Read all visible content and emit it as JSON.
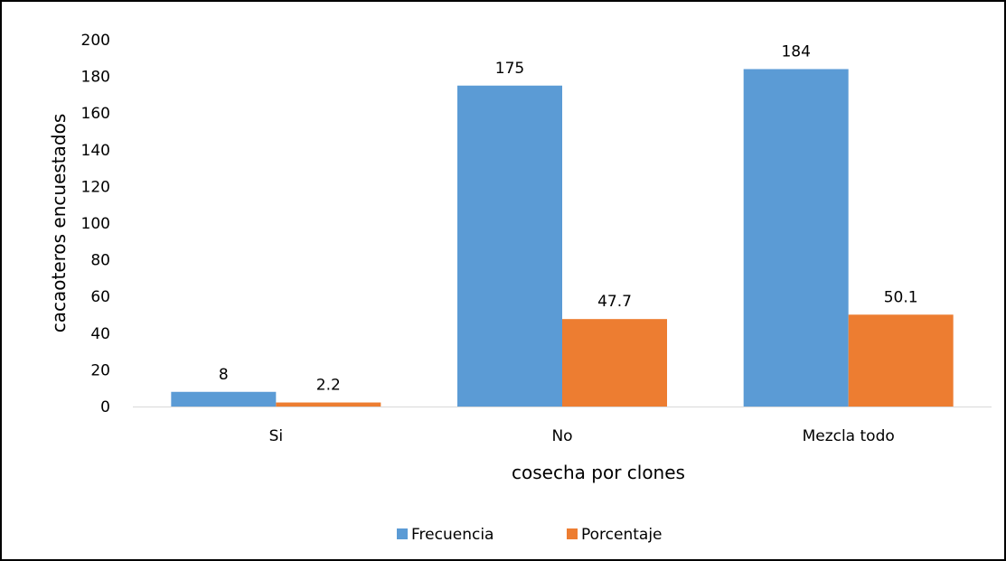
{
  "chart_data": {
    "type": "bar",
    "title": "",
    "xlabel": "cosecha por clones",
    "ylabel": "cacaoteros encuestados",
    "categories": [
      "Si",
      "No",
      "Mezcla todo"
    ],
    "series": [
      {
        "name": "Frecuencia",
        "values": [
          8,
          175,
          184
        ],
        "labels": [
          "8",
          "175",
          "184"
        ],
        "color": "#5B9BD5"
      },
      {
        "name": "Porcentaje",
        "values": [
          2.2,
          47.7,
          50.1
        ],
        "labels": [
          "2.2",
          "47.7",
          "50.1"
        ],
        "color": "#ED7D31"
      }
    ],
    "ylim": [
      0,
      200
    ],
    "yticks": [
      0,
      20,
      40,
      60,
      80,
      100,
      120,
      140,
      160,
      180,
      200
    ],
    "ytick_labels": [
      "0",
      "20",
      "40",
      "60",
      "80",
      "100",
      "120",
      "140",
      "160",
      "180",
      "200"
    ],
    "grid": false,
    "legend_position": "bottom-center"
  }
}
